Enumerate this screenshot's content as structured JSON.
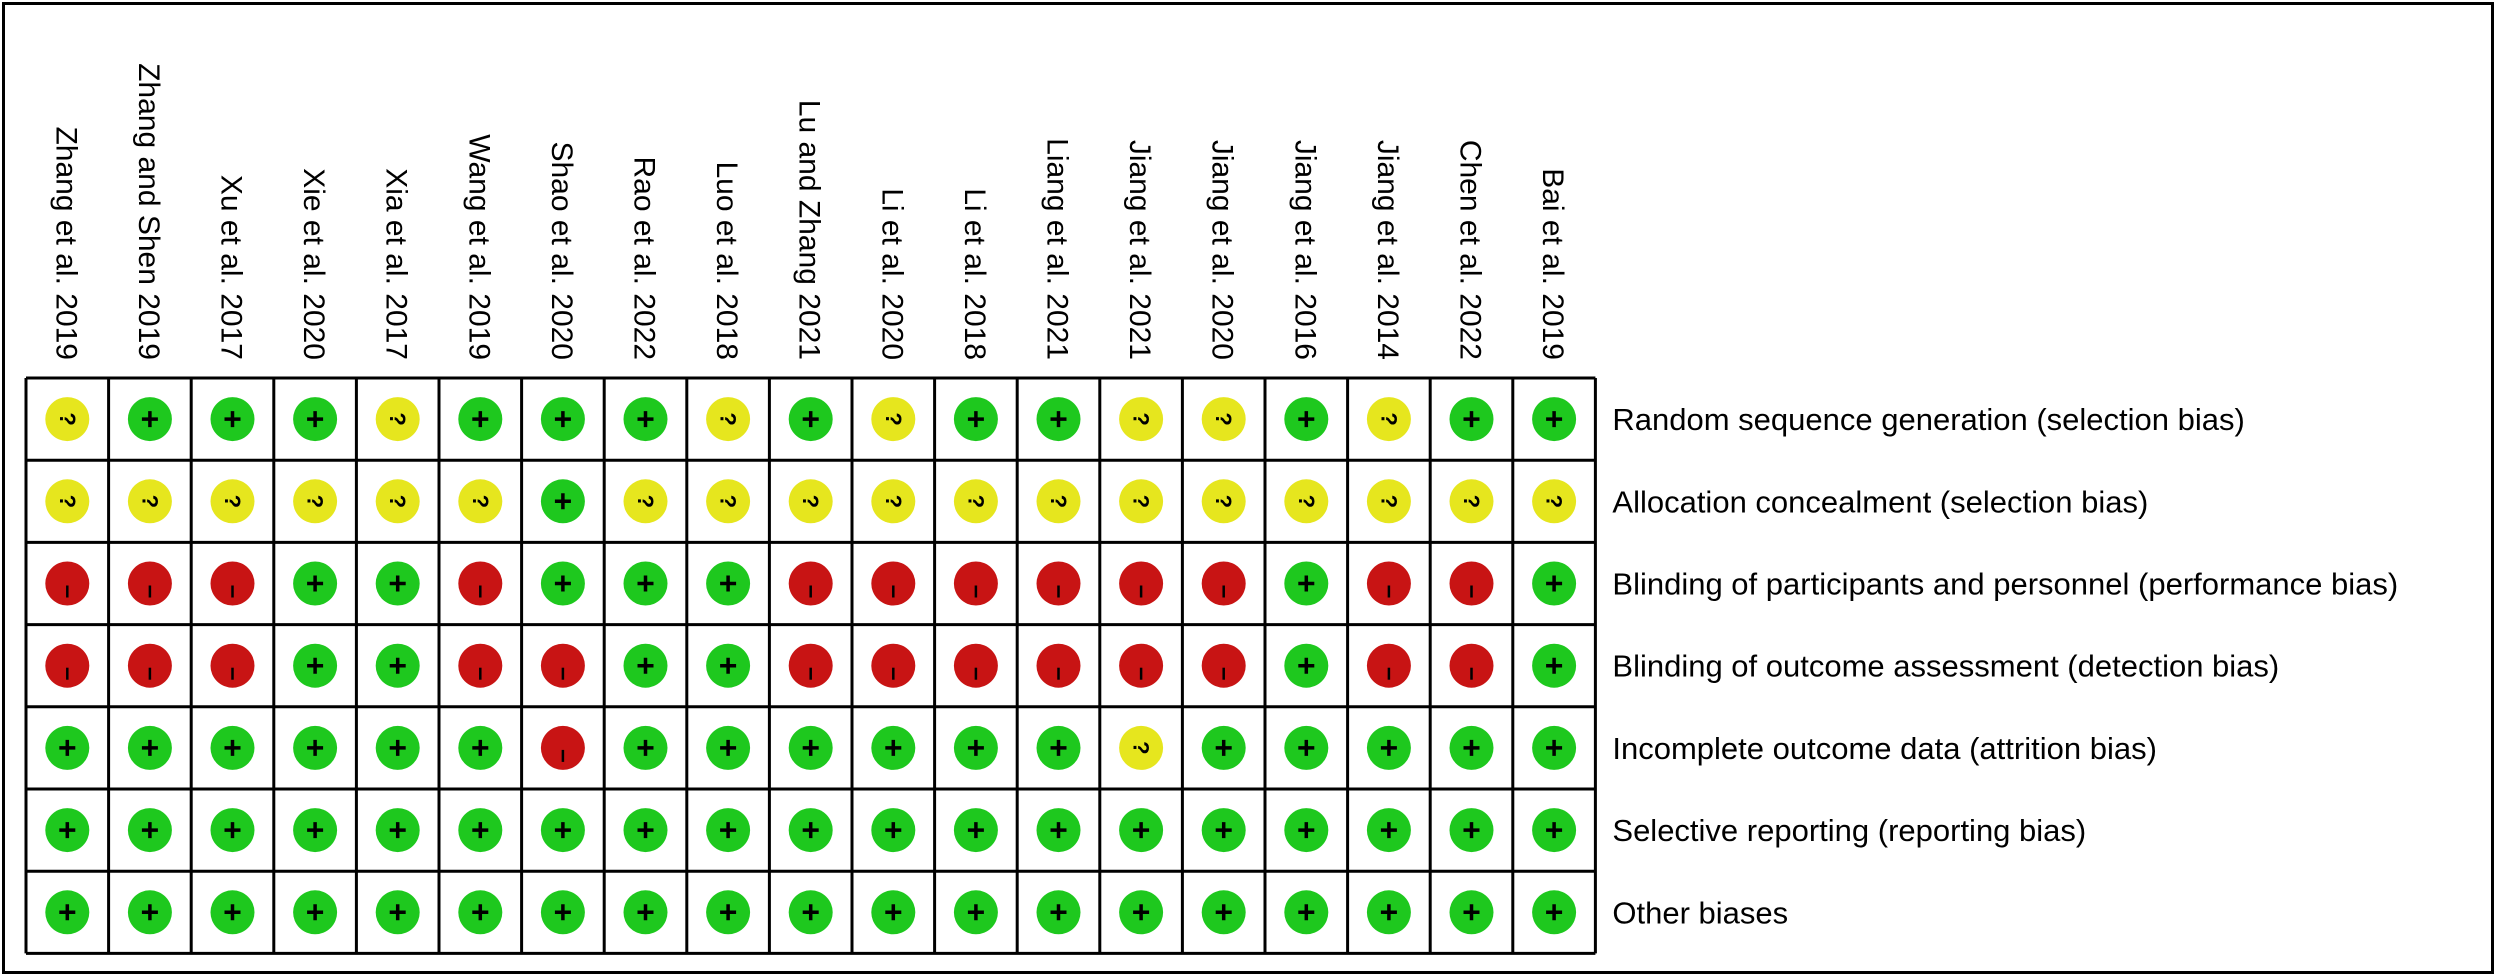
{
  "chart_data": {
    "type": "table",
    "studies": [
      "Zhang et al. 2019",
      "Zhang and Shen 2019",
      "Xu et al. 2017",
      "Xie et al. 2020",
      "Xia et al. 2017",
      "Wang et al. 2019",
      "Shao et al. 2020",
      "Rao et al. 2022",
      "Luo et al. 2018",
      "Lu and Zhang 2021",
      "Li et al. 2020",
      "Li et al. 2018",
      "Liang et al. 2021",
      "Jiang et al. 2021",
      "Jiang et al. 2020",
      "Jiang et al. 2016",
      "Jiang et al. 2014",
      "Chen et al. 2022",
      "Bai et al. 2019"
    ],
    "domains": [
      "Random sequence generation (selection bias)",
      "Allocation concealment (selection bias)",
      "Blinding of participants and personnel (performance bias)",
      "Blinding of outcome assessment (detection bias)",
      "Incomplete outcome data (attrition bias)",
      "Selective reporting (reporting bias)",
      "Other biases"
    ],
    "ratings": [
      [
        "?",
        "+",
        "+",
        "+",
        "?",
        "+",
        "+",
        "+",
        "?",
        "+",
        "?",
        "+",
        "+",
        "?",
        "?",
        "+",
        "?",
        "+",
        "+"
      ],
      [
        "?",
        "?",
        "?",
        "?",
        "?",
        "?",
        "+",
        "?",
        "?",
        "?",
        "?",
        "?",
        "?",
        "?",
        "?",
        "?",
        "?",
        "?",
        "?"
      ],
      [
        "-",
        "-",
        "-",
        "+",
        "+",
        "-",
        "+",
        "+",
        "+",
        "-",
        "-",
        "-",
        "-",
        "-",
        "-",
        "+",
        "-",
        "-",
        "+"
      ],
      [
        "-",
        "-",
        "-",
        "+",
        "+",
        "-",
        "-",
        "+",
        "+",
        "-",
        "-",
        "-",
        "-",
        "-",
        "-",
        "+",
        "-",
        "-",
        "+"
      ],
      [
        "+",
        "+",
        "+",
        "+",
        "+",
        "+",
        "-",
        "+",
        "+",
        "+",
        "+",
        "+",
        "+",
        "?",
        "+",
        "+",
        "+",
        "+",
        "+"
      ],
      [
        "+",
        "+",
        "+",
        "+",
        "+",
        "+",
        "+",
        "+",
        "+",
        "+",
        "+",
        "+",
        "+",
        "+",
        "+",
        "+",
        "+",
        "+",
        "+"
      ],
      [
        "+",
        "+",
        "+",
        "+",
        "+",
        "+",
        "+",
        "+",
        "+",
        "+",
        "+",
        "+",
        "+",
        "+",
        "+",
        "+",
        "+",
        "+",
        "+"
      ]
    ],
    "colors": {
      "+": "#1ec81e",
      "?": "#e6e61e",
      "-": "#c81414"
    }
  }
}
